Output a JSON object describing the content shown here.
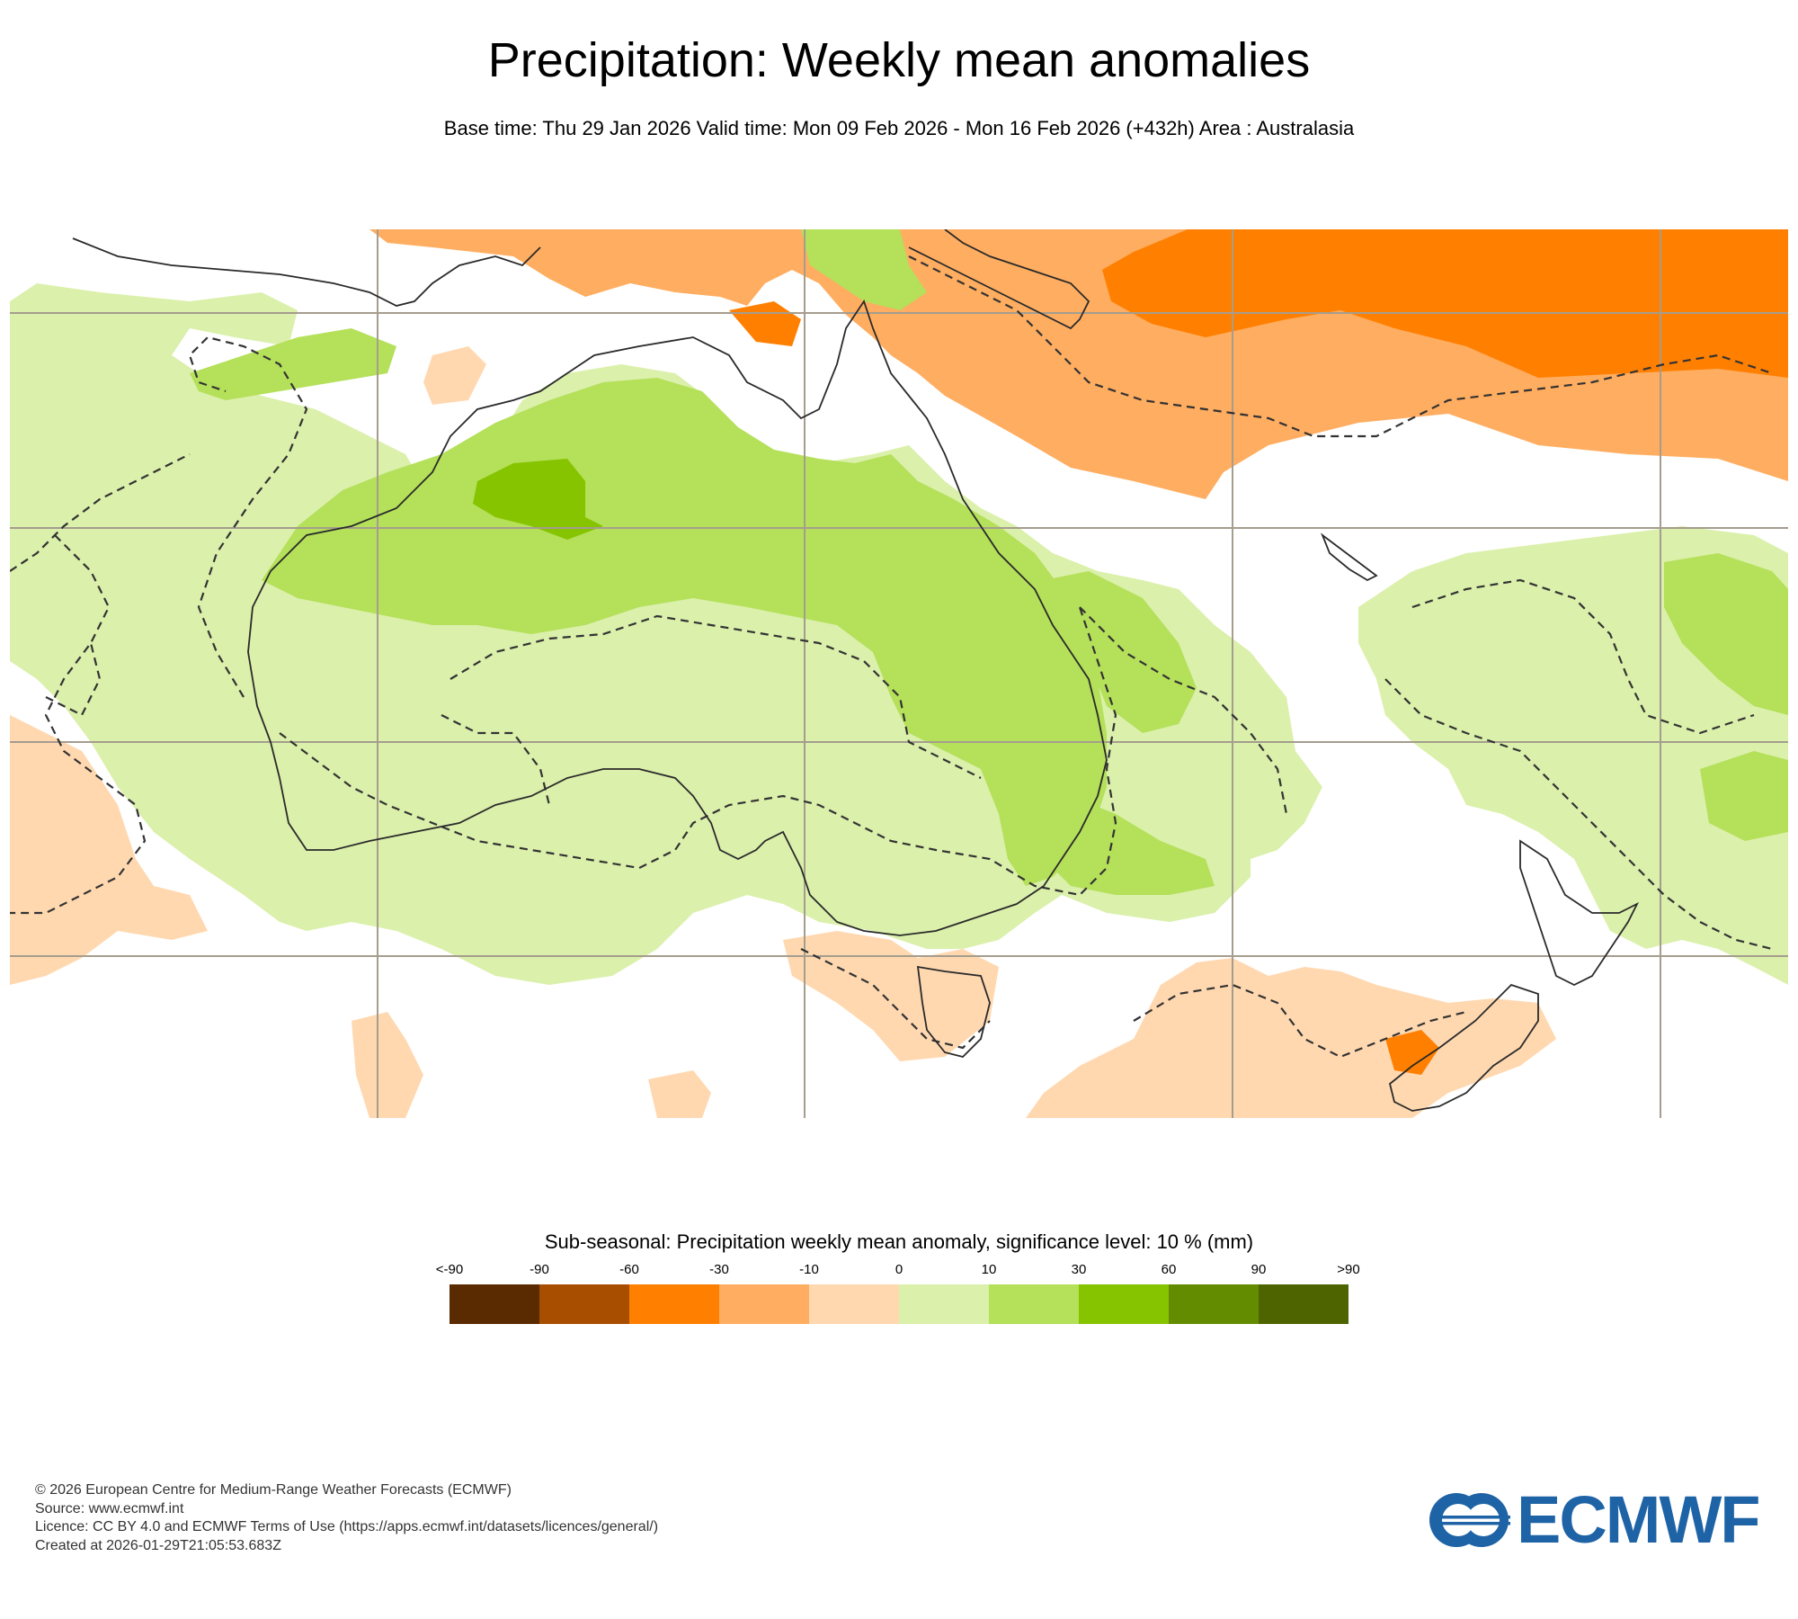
{
  "header": {
    "title": "Precipitation: Weekly mean anomalies",
    "subtitle": "Base time: Thu 29 Jan 2026 Valid time: Mon 09 Feb 2026 - Mon 16 Feb 2026 (+432h) Area : Australasia"
  },
  "map": {
    "area": "Australasia",
    "colors": {
      "land_outline": "#2a2a2a",
      "grid_line": "#a59d8e",
      "dashed_contour": "#333333"
    }
  },
  "legend": {
    "title": "Sub-seasonal: Precipitation weekly mean anomaly, significance level: 10 % (mm)",
    "tick_labels": [
      "<-90",
      "-90",
      "-60",
      "-30",
      "-10",
      "0",
      "10",
      "30",
      "60",
      "90",
      ">90"
    ],
    "colors": [
      "#5a2a00",
      "#a84e00",
      "#ff7f00",
      "#ffad60",
      "#ffd8b0",
      "#dbf0ab",
      "#b4e05a",
      "#86c400",
      "#648c00",
      "#4e6400"
    ]
  },
  "footer": {
    "lines": [
      "© 2026 European Centre for Medium-Range Weather Forecasts (ECMWF)",
      "Source: www.ecmwf.int",
      "Licence: CC BY 4.0 and ECMWF Terms of Use (https://apps.ecmwf.int/datasets/licences/general/)",
      "Created at 2026-01-29T21:05:53.683Z"
    ]
  },
  "logo": {
    "text": "ECMWF",
    "color": "#1e63a5",
    "icon": "ecmwf-logo-icon"
  }
}
